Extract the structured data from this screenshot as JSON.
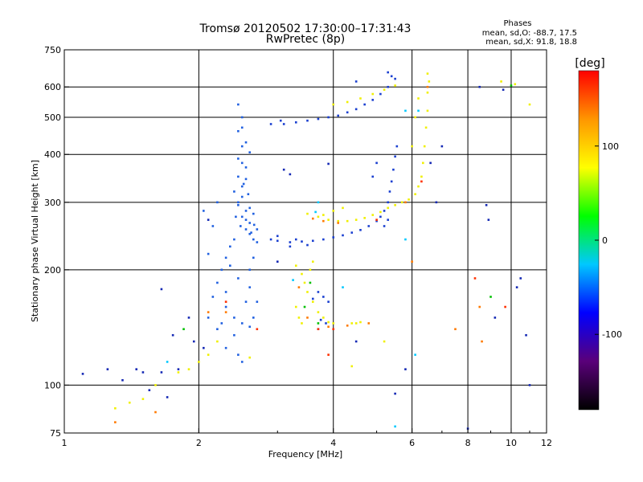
{
  "chart_data": {
    "type": "scatter",
    "title_line1": "Tromsø 20120502 17:30:00–17:31:43",
    "title_line2": "RwPretec (8p)",
    "phases_header": "Phases",
    "phases_line_o": "mean, sd,O: -88.7, 17.5",
    "phases_line_x": "mean, sd,X: 91.8, 18.8",
    "xlabel": "Frequency [MHz]",
    "ylabel": "Stationary phase Virtual Height [km]",
    "x_scale": "log",
    "y_scale": "log",
    "xlim": [
      1,
      12
    ],
    "ylim": [
      75,
      750
    ],
    "x_ticks": [
      1,
      2,
      4,
      6,
      8,
      10,
      12
    ],
    "y_ticks": [
      75,
      100,
      200,
      300,
      400,
      500,
      600,
      750
    ],
    "x_grid": [
      2,
      4,
      6,
      8,
      10
    ],
    "y_grid": [
      100,
      200,
      300,
      400,
      500,
      600
    ],
    "grid": true,
    "colorbar": {
      "label": "[deg]",
      "range": [
        -180,
        180
      ],
      "ticks": [
        100,
        0,
        -100
      ],
      "colors": [
        "#000000",
        "#5a007a",
        "#0000ff",
        "#00c8ff",
        "#00ff00",
        "#ffff00",
        "#ff9600",
        "#ff0000"
      ]
    },
    "series": [
      {
        "color": "#2060e0",
        "points": [
          [
            2.45,
            540
          ],
          [
            2.5,
            500
          ],
          [
            2.45,
            460
          ],
          [
            2.5,
            420
          ],
          [
            2.45,
            390
          ],
          [
            2.55,
            370
          ],
          [
            2.45,
            350
          ],
          [
            2.5,
            330
          ],
          [
            2.5,
            310
          ],
          [
            2.45,
            295
          ],
          [
            2.55,
            285
          ],
          [
            2.5,
            275
          ],
          [
            2.6,
            265
          ],
          [
            2.55,
            255
          ],
          [
            2.6,
            248
          ],
          [
            2.65,
            240
          ],
          [
            2.7,
            236
          ],
          [
            2.5,
            380
          ],
          [
            2.55,
            345
          ],
          [
            2.4,
            320
          ],
          [
            2.45,
            300
          ],
          [
            2.6,
            290
          ],
          [
            2.65,
            280
          ],
          [
            2.55,
            270
          ],
          [
            2.48,
            260
          ],
          [
            2.62,
            250
          ],
          [
            2.5,
            470
          ],
          [
            2.55,
            430
          ],
          [
            2.6,
            405
          ],
          [
            2.52,
            335
          ],
          [
            2.58,
            315
          ],
          [
            2.42,
            275
          ],
          [
            2.66,
            262
          ],
          [
            2.7,
            255
          ],
          [
            2.4,
            240
          ],
          [
            2.35,
            230
          ],
          [
            2.3,
            215
          ],
          [
            2.25,
            200
          ],
          [
            2.2,
            185
          ],
          [
            2.15,
            170
          ],
          [
            2.3,
            160
          ],
          [
            2.4,
            150
          ],
          [
            2.5,
            145
          ],
          [
            2.2,
            140
          ],
          [
            2.1,
            150
          ],
          [
            2.3,
            175
          ],
          [
            2.45,
            190
          ],
          [
            2.35,
            205
          ],
          [
            2.6,
            180
          ],
          [
            2.55,
            165
          ],
          [
            2.15,
            260
          ],
          [
            2.05,
            285
          ],
          [
            2.2,
            300
          ],
          [
            2.1,
            220
          ],
          [
            2.4,
            135
          ],
          [
            2.6,
            142
          ],
          [
            2.65,
            150
          ],
          [
            2.7,
            165
          ],
          [
            2.45,
            120
          ],
          [
            2.5,
            115
          ],
          [
            2.3,
            125
          ],
          [
            2.25,
            145
          ],
          [
            2.6,
            200
          ],
          [
            2.65,
            215
          ]
        ]
      },
      {
        "color": "#1a3fd0",
        "points": [
          [
            2.9,
            240
          ],
          [
            3.0,
            238
          ],
          [
            3.2,
            236
          ],
          [
            3.4,
            237
          ],
          [
            3.6,
            238
          ],
          [
            3.8,
            240
          ],
          [
            4.0,
            243
          ],
          [
            4.2,
            246
          ],
          [
            4.4,
            250
          ],
          [
            4.6,
            254
          ],
          [
            4.8,
            260
          ],
          [
            5.0,
            268
          ],
          [
            5.1,
            275
          ],
          [
            5.2,
            285
          ],
          [
            5.3,
            300
          ],
          [
            5.35,
            320
          ],
          [
            5.4,
            340
          ],
          [
            5.45,
            365
          ],
          [
            5.5,
            395
          ],
          [
            5.55,
            420
          ],
          [
            3.1,
            480
          ],
          [
            3.3,
            485
          ],
          [
            3.5,
            490
          ],
          [
            3.7,
            495
          ],
          [
            3.9,
            500
          ],
          [
            4.1,
            505
          ],
          [
            4.3,
            515
          ],
          [
            4.5,
            525
          ],
          [
            4.7,
            540
          ],
          [
            4.9,
            555
          ],
          [
            5.1,
            575
          ],
          [
            5.3,
            600
          ],
          [
            5.5,
            630
          ],
          [
            3.2,
            230
          ],
          [
            3.5,
            232
          ],
          [
            3.3,
            240
          ],
          [
            3.0,
            245
          ],
          [
            5.0,
            380
          ],
          [
            4.9,
            350
          ],
          [
            5.2,
            260
          ],
          [
            5.3,
            270
          ],
          [
            3.8,
            170
          ],
          [
            3.9,
            165
          ],
          [
            3.7,
            175
          ],
          [
            3.6,
            168
          ],
          [
            3.85,
            145
          ],
          [
            3.75,
            148
          ],
          [
            3.7,
            140
          ],
          [
            4.5,
            620
          ],
          [
            5.4,
            640
          ],
          [
            5.3,
            655
          ],
          [
            2.9,
            480
          ],
          [
            3.05,
            490
          ]
        ]
      },
      {
        "color": "#f0f000",
        "points": [
          [
            3.5,
            280
          ],
          [
            3.7,
            275
          ],
          [
            3.9,
            270
          ],
          [
            4.1,
            268
          ],
          [
            4.3,
            268
          ],
          [
            4.5,
            270
          ],
          [
            4.7,
            273
          ],
          [
            4.9,
            278
          ],
          [
            5.1,
            283
          ],
          [
            5.3,
            290
          ],
          [
            5.5,
            295
          ],
          [
            5.7,
            300
          ],
          [
            5.9,
            305
          ],
          [
            6.1,
            315
          ],
          [
            6.2,
            330
          ],
          [
            6.3,
            350
          ],
          [
            6.35,
            380
          ],
          [
            6.4,
            420
          ],
          [
            6.45,
            470
          ],
          [
            6.5,
            520
          ],
          [
            6.5,
            580
          ],
          [
            6.55,
            620
          ],
          [
            6.5,
            650
          ],
          [
            4.0,
            540
          ],
          [
            4.3,
            548
          ],
          [
            4.6,
            560
          ],
          [
            4.9,
            575
          ],
          [
            5.2,
            590
          ],
          [
            5.5,
            605
          ],
          [
            3.3,
            205
          ],
          [
            3.4,
            195
          ],
          [
            3.45,
            185
          ],
          [
            3.5,
            175
          ],
          [
            3.6,
            165
          ],
          [
            3.7,
            155
          ],
          [
            3.8,
            150
          ],
          [
            3.9,
            146
          ],
          [
            4.0,
            145
          ],
          [
            4.4,
            145
          ],
          [
            4.5,
            145
          ],
          [
            4.6,
            146
          ],
          [
            3.3,
            160
          ],
          [
            3.35,
            150
          ],
          [
            3.4,
            145
          ],
          [
            2.2,
            130
          ],
          [
            2.1,
            120
          ],
          [
            2.0,
            115
          ],
          [
            1.9,
            110
          ],
          [
            1.8,
            108
          ],
          [
            1.6,
            100
          ],
          [
            1.4,
            90
          ],
          [
            1.3,
            87
          ],
          [
            1.5,
            92
          ],
          [
            3.6,
            210
          ],
          [
            3.55,
            200
          ],
          [
            4.2,
            290
          ],
          [
            4.0,
            285
          ],
          [
            3.8,
            278
          ],
          [
            6.0,
            420
          ],
          [
            6.1,
            500
          ],
          [
            6.2,
            560
          ],
          [
            2.6,
            118
          ],
          [
            4.4,
            112
          ],
          [
            5.2,
            130
          ],
          [
            9.5,
            620
          ],
          [
            10.2,
            610
          ],
          [
            11.0,
            540
          ]
        ]
      },
      {
        "color": "#ff7a00",
        "points": [
          [
            3.6,
            272
          ],
          [
            3.8,
            268
          ],
          [
            4.1,
            265
          ],
          [
            3.35,
            180
          ],
          [
            3.5,
            150
          ],
          [
            3.9,
            142
          ],
          [
            4.3,
            143
          ],
          [
            2.3,
            155
          ],
          [
            1.6,
            85
          ],
          [
            1.3,
            80
          ],
          [
            6.5,
            600
          ],
          [
            5.8,
            300
          ],
          [
            8.5,
            160
          ],
          [
            8.6,
            130
          ],
          [
            7.5,
            140
          ],
          [
            6.0,
            210
          ],
          [
            2.1,
            155
          ],
          [
            4.8,
            145
          ]
        ]
      },
      {
        "color": "#00c8ff",
        "points": [
          [
            3.65,
            283
          ],
          [
            3.25,
            188
          ],
          [
            5.8,
            240
          ],
          [
            6.2,
            520
          ],
          [
            5.8,
            520
          ],
          [
            3.7,
            300
          ],
          [
            4.2,
            180
          ],
          [
            6.1,
            120
          ],
          [
            5.5,
            78
          ],
          [
            1.7,
            115
          ]
        ]
      },
      {
        "color": "#00c000",
        "points": [
          [
            3.55,
            185
          ],
          [
            3.45,
            160
          ],
          [
            3.7,
            145
          ],
          [
            10.0,
            605
          ],
          [
            1.85,
            140
          ],
          [
            9.0,
            170
          ]
        ]
      },
      {
        "color": "#1428b4",
        "points": [
          [
            1.1,
            107
          ],
          [
            1.25,
            110
          ],
          [
            1.35,
            103
          ],
          [
            1.45,
            110
          ],
          [
            1.5,
            108
          ],
          [
            1.55,
            97
          ],
          [
            1.65,
            108
          ],
          [
            1.7,
            93
          ],
          [
            1.8,
            110
          ],
          [
            1.65,
            178
          ],
          [
            1.75,
            135
          ],
          [
            1.9,
            150
          ],
          [
            1.95,
            130
          ],
          [
            2.05,
            125
          ],
          [
            8.5,
            600
          ],
          [
            8.8,
            295
          ],
          [
            8.9,
            270
          ],
          [
            9.2,
            150
          ],
          [
            10.3,
            180
          ],
          [
            10.5,
            190
          ],
          [
            11.0,
            100
          ],
          [
            10.8,
            135
          ],
          [
            8.0,
            77
          ],
          [
            5.8,
            110
          ],
          [
            5.5,
            95
          ],
          [
            4.5,
            130
          ],
          [
            3.9,
            378
          ],
          [
            3.1,
            365
          ],
          [
            3.2,
            355
          ],
          [
            3.0,
            210
          ],
          [
            2.1,
            270
          ],
          [
            9.6,
            590
          ],
          [
            7.0,
            420
          ],
          [
            6.6,
            380
          ],
          [
            6.8,
            300
          ]
        ]
      },
      {
        "color": "#ff3000",
        "points": [
          [
            6.3,
            340
          ],
          [
            2.3,
            165
          ],
          [
            2.7,
            140
          ],
          [
            3.7,
            140
          ],
          [
            4.0,
            140
          ],
          [
            8.3,
            190
          ],
          [
            9.7,
            160
          ],
          [
            3.9,
            120
          ],
          [
            5.0,
            270
          ]
        ]
      }
    ]
  }
}
